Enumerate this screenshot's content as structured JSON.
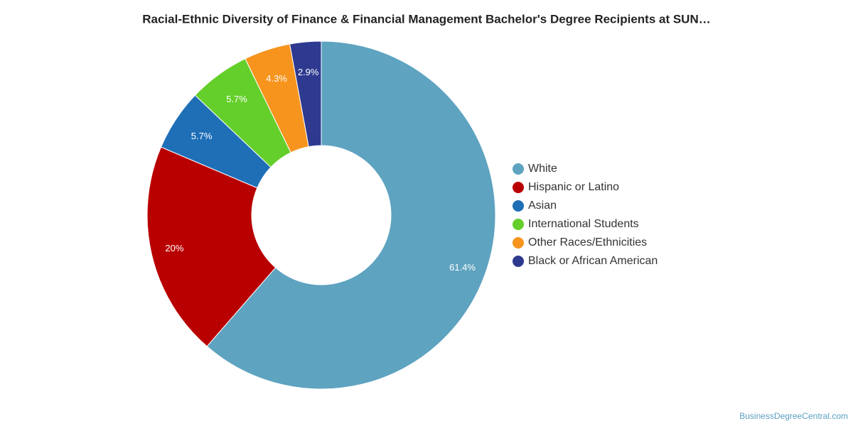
{
  "chart_data": {
    "type": "donut",
    "title": "Racial-Ethnic Diversity of Finance & Financial Management Bachelor's Degree Recipients at SUN…",
    "categories": [
      "White",
      "Hispanic or Latino",
      "Asian",
      "International Students",
      "Other Races/Ethnicities",
      "Black or African American"
    ],
    "values": [
      61.4,
      20,
      5.7,
      5.7,
      4.3,
      2.9
    ],
    "value_labels": [
      "61.4%",
      "20%",
      "5.7%",
      "5.7%",
      "4.3%",
      "2.9%"
    ],
    "colors": [
      "#5ea3c0",
      "#b90000",
      "#1f6fb7",
      "#64cf2a",
      "#f7941d",
      "#2e3a8f"
    ],
    "legend": "right",
    "credit": "BusinessDegreeCentral.com"
  }
}
